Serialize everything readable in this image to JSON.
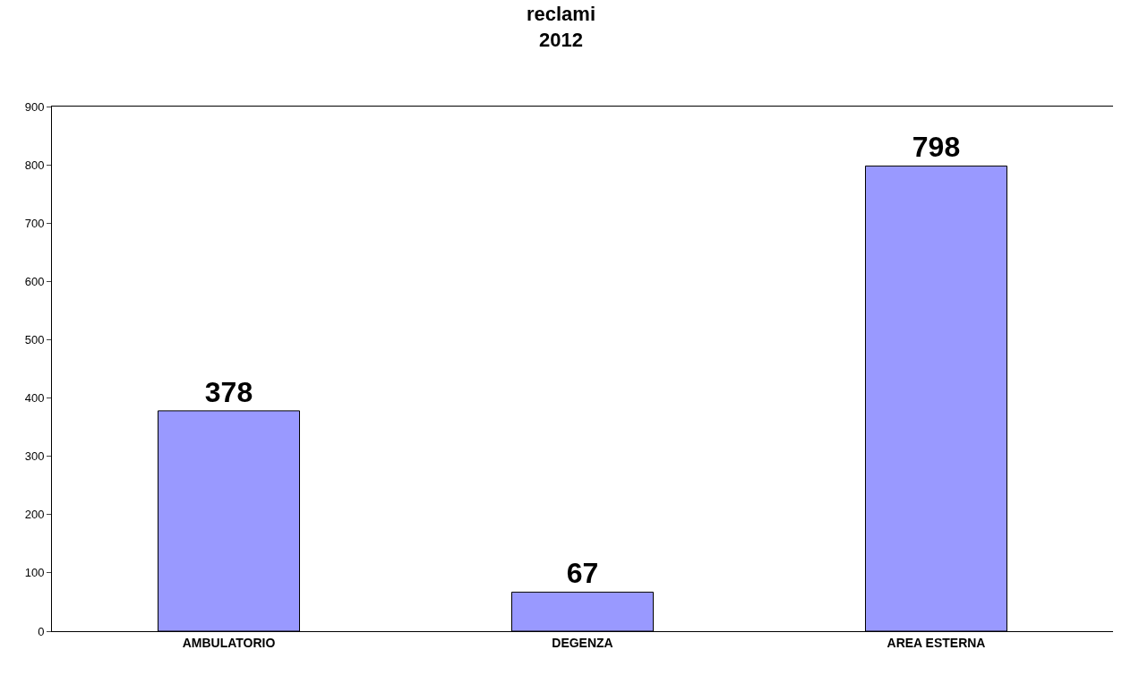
{
  "chart_data": {
    "type": "bar",
    "title": "reclami\n2012",
    "categories": [
      "AMBULATORIO",
      "DEGENZA",
      "AREA ESTERNA"
    ],
    "values": [
      378,
      67,
      798
    ],
    "color": "#9999ff",
    "ylim": [
      0,
      900
    ],
    "yticks": [
      0,
      100,
      200,
      300,
      400,
      500,
      600,
      700,
      800,
      900
    ],
    "data_labels": true
  }
}
